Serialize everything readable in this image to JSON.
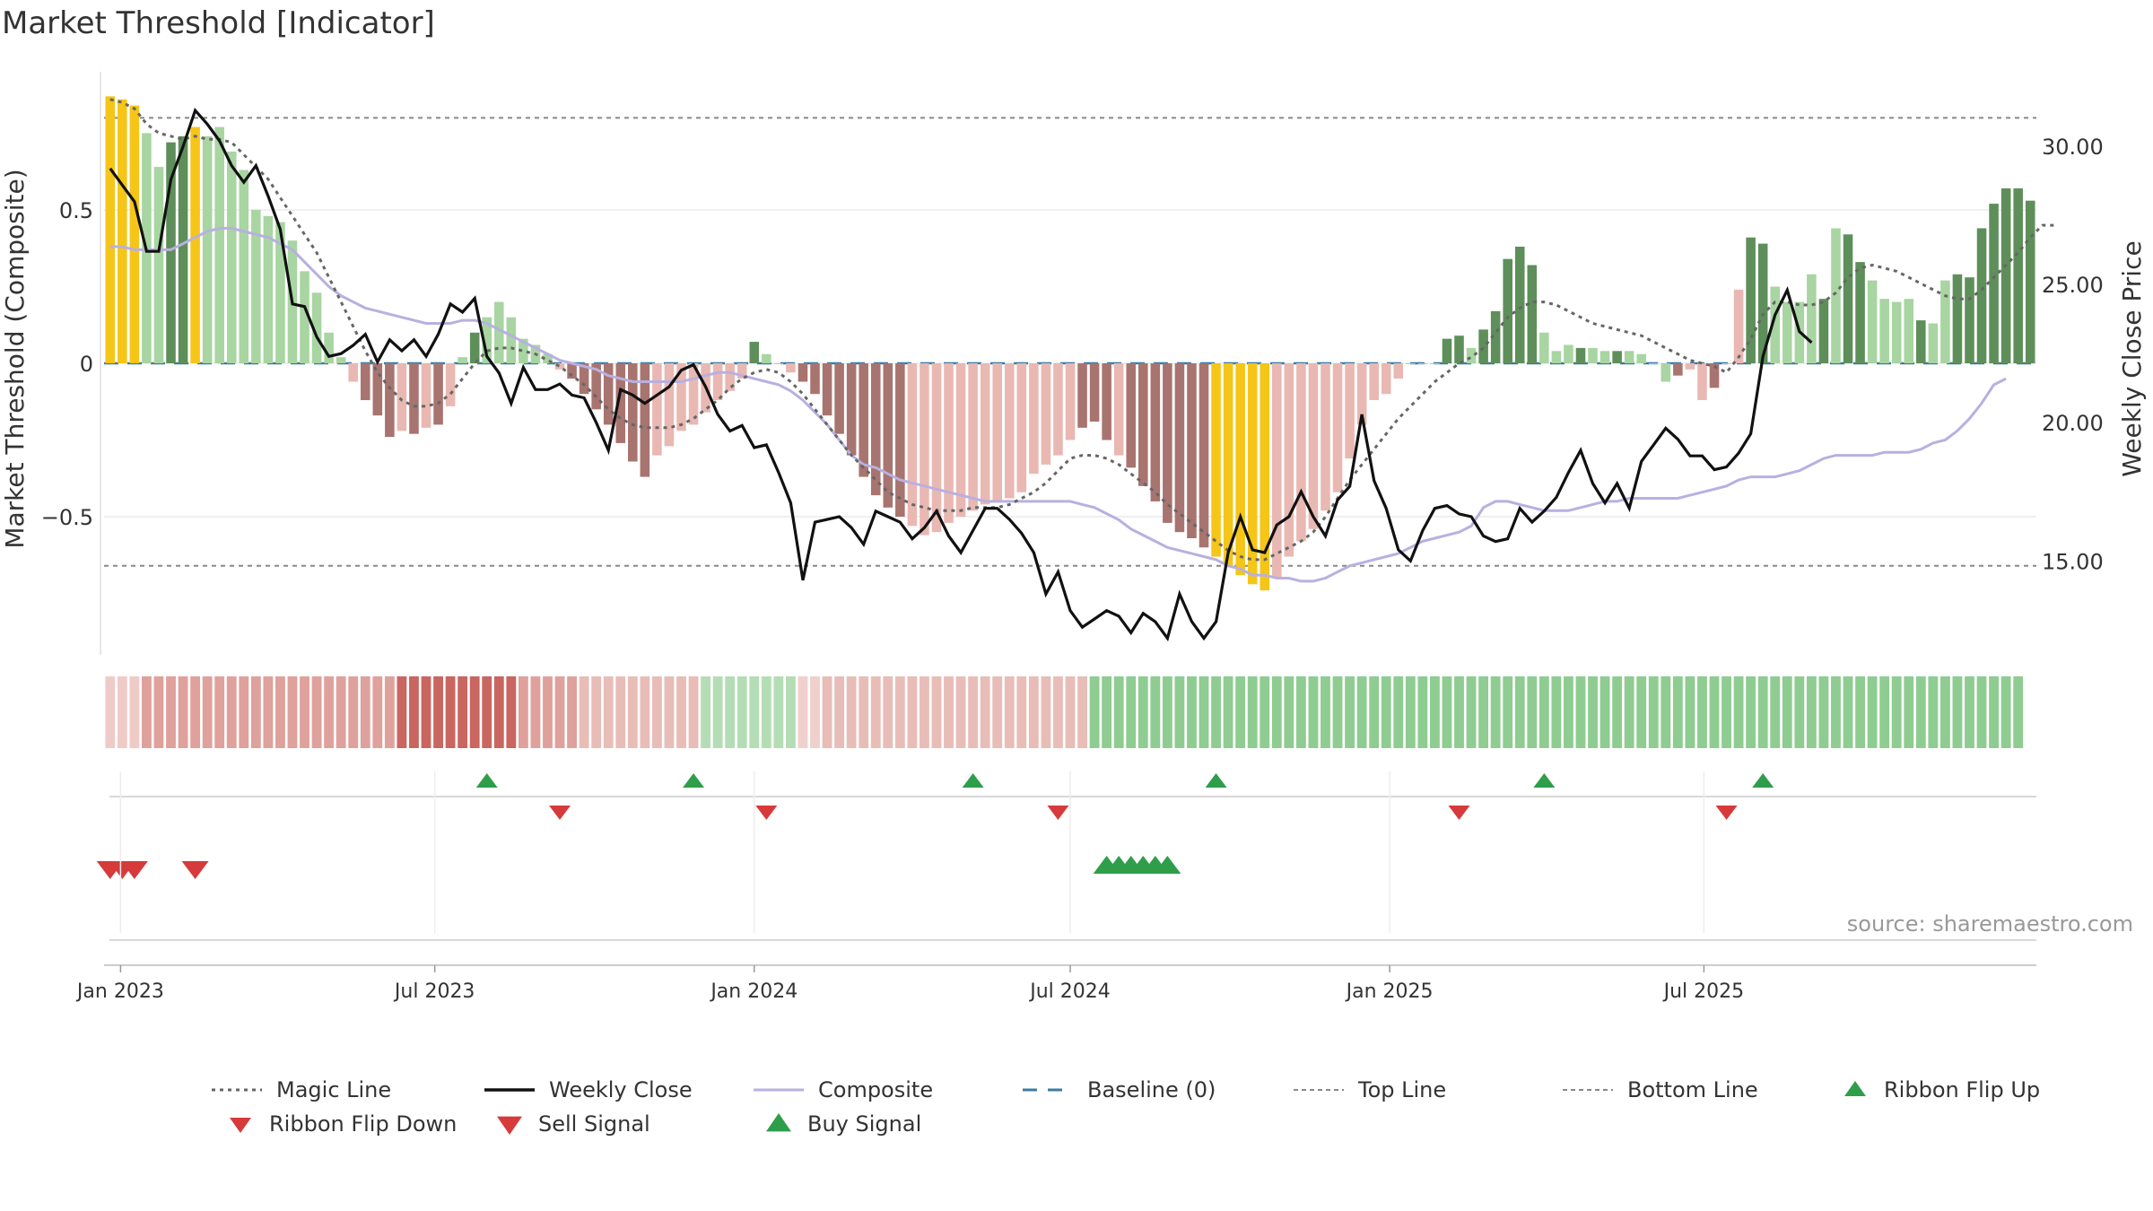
{
  "title": "Market Threshold [Indicator]",
  "source": "source: sharemaestro.com",
  "colors": {
    "yellow": "#F5C518",
    "green_light": "#A8D5A2",
    "green_dark": "#5E8F5A",
    "red_light": "#E9B8B2",
    "red_dark": "#A87470",
    "magic": "#666666",
    "close": "#111111",
    "composite": "#B8B0E0",
    "baseline": "#3A7CA5",
    "refline": "#888888",
    "flip_up": "#2E9E4A",
    "flip_down": "#D63A3A",
    "sell": "#D63A3A",
    "buy": "#2E9E4A"
  },
  "chart_data": {
    "type": "bar",
    "x_start": "2022-12-26",
    "x_interval_days": 7,
    "x_ticks": [
      "Jan 2023",
      "Jul 2023",
      "Jan 2024",
      "Jul 2024",
      "Jan 2025",
      "Jul 2025"
    ],
    "y_left": {
      "label": "Market Threshold (Composite)",
      "ticks": [
        "0.5",
        "0",
        "−0.5"
      ],
      "tick_values": [
        0.5,
        0,
        -0.5
      ],
      "range": [
        -0.95,
        0.95
      ]
    },
    "y_right": {
      "label": "Weekly Close Price",
      "ticks": [
        "30.00",
        "25.00",
        "20.00",
        "15.00"
      ],
      "tick_values": [
        30,
        25,
        20,
        15
      ],
      "range": [
        11.6,
        32.7
      ]
    },
    "top_line": 0.8,
    "bottom_line": -0.66,
    "bars": {
      "values": [
        0.87,
        0.86,
        0.84,
        0.75,
        0.64,
        0.72,
        0.74,
        0.77,
        0.74,
        0.77,
        0.69,
        0.63,
        0.5,
        0.48,
        0.46,
        0.4,
        0.3,
        0.23,
        0.1,
        0.02,
        -0.06,
        -0.12,
        -0.17,
        -0.24,
        -0.22,
        -0.23,
        -0.21,
        -0.2,
        -0.14,
        0.02,
        0.1,
        0.15,
        0.2,
        0.15,
        0.08,
        0.06,
        0.03,
        -0.02,
        -0.05,
        -0.1,
        -0.15,
        -0.2,
        -0.26,
        -0.32,
        -0.37,
        -0.3,
        -0.27,
        -0.22,
        -0.2,
        -0.16,
        -0.12,
        -0.09,
        -0.05,
        0.07,
        0.03,
        0.0,
        -0.03,
        -0.06,
        -0.1,
        -0.17,
        -0.23,
        -0.3,
        -0.37,
        -0.43,
        -0.47,
        -0.5,
        -0.53,
        -0.56,
        -0.55,
        -0.52,
        -0.5,
        -0.48,
        -0.46,
        -0.45,
        -0.44,
        -0.42,
        -0.36,
        -0.33,
        -0.3,
        -0.25,
        -0.21,
        -0.19,
        -0.25,
        -0.3,
        -0.34,
        -0.4,
        -0.45,
        -0.52,
        -0.55,
        -0.57,
        -0.6,
        -0.63,
        -0.66,
        -0.69,
        -0.72,
        -0.74,
        -0.7,
        -0.63,
        -0.58,
        -0.54,
        -0.48,
        -0.42,
        -0.31,
        -0.2,
        -0.12,
        -0.1,
        -0.05,
        0.0,
        0.0,
        0.0,
        0.08,
        0.09,
        0.05,
        0.11,
        0.17,
        0.34,
        0.38,
        0.32,
        0.1,
        0.04,
        0.06,
        0.05,
        0.05,
        0.04,
        0.04,
        0.04,
        0.03,
        0.0,
        -0.06,
        -0.04,
        -0.02,
        -0.12,
        -0.08,
        0.0,
        0.24,
        0.41,
        0.39,
        0.25,
        0.2,
        0.2,
        0.29,
        0.21,
        0.44,
        0.42,
        0.33,
        0.27,
        0.21,
        0.2,
        0.21,
        0.14,
        0.13,
        0.27,
        0.29,
        0.28,
        0.44,
        0.52,
        0.57,
        0.57,
        0.53
      ],
      "colors": [
        "Y",
        "Y",
        "Y",
        "GL",
        "GL",
        "GD",
        "GD",
        "Y",
        "GL",
        "GL",
        "GL",
        "GL",
        "GL",
        "GL",
        "GL",
        "GL",
        "GL",
        "GL",
        "GL",
        "GL",
        "RL",
        "RD",
        "RD",
        "RD",
        "RL",
        "RD",
        "RL",
        "RD",
        "RL",
        "GL",
        "GD",
        "GL",
        "GL",
        "GL",
        "GL",
        "GL",
        "GL",
        "RL",
        "RD",
        "RD",
        "RD",
        "RD",
        "RD",
        "RD",
        "RD",
        "RL",
        "RL",
        "RL",
        "RL",
        "RL",
        "RL",
        "RL",
        "RL",
        "GD",
        "GL",
        "GL",
        "RL",
        "RD",
        "RD",
        "RD",
        "RD",
        "RD",
        "RD",
        "RD",
        "RD",
        "RD",
        "RL",
        "RL",
        "RL",
        "RL",
        "RL",
        "RL",
        "RL",
        "RL",
        "RL",
        "RL",
        "RL",
        "RL",
        "RL",
        "RL",
        "RD",
        "RD",
        "RD",
        "RL",
        "RD",
        "RD",
        "RD",
        "RD",
        "RD",
        "RD",
        "RD",
        "Y",
        "Y",
        "Y",
        "Y",
        "Y",
        "RL",
        "RL",
        "RL",
        "RL",
        "RL",
        "RL",
        "RL",
        "RL",
        "RL",
        "RL",
        "RL",
        "GL",
        "GL",
        "GL",
        "GD",
        "GD",
        "GL",
        "GD",
        "GD",
        "GD",
        "GD",
        "GD",
        "GL",
        "GL",
        "GL",
        "GD",
        "GL",
        "GL",
        "GD",
        "GL",
        "GL",
        "GL",
        "GL",
        "RD",
        "RL",
        "RL",
        "RD",
        "RL",
        "RL",
        "GD",
        "GD",
        "GL",
        "GL",
        "GL",
        "GL",
        "GD",
        "GL",
        "GD",
        "GD",
        "GL",
        "GL",
        "GL",
        "GL",
        "GD",
        "GL",
        "GL",
        "GD",
        "GD",
        "GD",
        "GD",
        "GD",
        "GD",
        "GD",
        "GL"
      ]
    },
    "series": [
      {
        "name": "Magic Line",
        "values": [
          0.86,
          0.85,
          0.83,
          0.78,
          0.75,
          0.74,
          0.73,
          0.74,
          0.73,
          0.73,
          0.72,
          0.68,
          0.64,
          0.6,
          0.54,
          0.48,
          0.42,
          0.36,
          0.28,
          0.2,
          0.12,
          0.04,
          -0.03,
          -0.08,
          -0.12,
          -0.14,
          -0.14,
          -0.13,
          -0.1,
          -0.05,
          0.0,
          0.04,
          0.05,
          0.05,
          0.04,
          0.03,
          0.01,
          -0.01,
          -0.04,
          -0.07,
          -0.11,
          -0.15,
          -0.18,
          -0.2,
          -0.21,
          -0.21,
          -0.21,
          -0.2,
          -0.18,
          -0.15,
          -0.12,
          -0.08,
          -0.05,
          -0.03,
          -0.02,
          -0.03,
          -0.06,
          -0.1,
          -0.15,
          -0.2,
          -0.25,
          -0.3,
          -0.34,
          -0.38,
          -0.42,
          -0.44,
          -0.46,
          -0.47,
          -0.48,
          -0.48,
          -0.48,
          -0.47,
          -0.47,
          -0.47,
          -0.46,
          -0.44,
          -0.42,
          -0.39,
          -0.35,
          -0.31,
          -0.3,
          -0.3,
          -0.31,
          -0.33,
          -0.36,
          -0.39,
          -0.42,
          -0.46,
          -0.49,
          -0.52,
          -0.55,
          -0.58,
          -0.61,
          -0.63,
          -0.64,
          -0.64,
          -0.62,
          -0.6,
          -0.58,
          -0.55,
          -0.5,
          -0.44,
          -0.38,
          -0.33,
          -0.28,
          -0.23,
          -0.18,
          -0.14,
          -0.1,
          -0.06,
          -0.03,
          0.0,
          0.02,
          0.05,
          0.1,
          0.15,
          0.18,
          0.2,
          0.2,
          0.19,
          0.17,
          0.15,
          0.13,
          0.12,
          0.11,
          0.1,
          0.09,
          0.07,
          0.05,
          0.03,
          0.01,
          0.0,
          -0.01,
          -0.03,
          0.02,
          0.08,
          0.16,
          0.2,
          0.2,
          0.19,
          0.19,
          0.2,
          0.23,
          0.28,
          0.31,
          0.32,
          0.31,
          0.3,
          0.28,
          0.26,
          0.24,
          0.22,
          0.21,
          0.21,
          0.24,
          0.28,
          0.32,
          0.36,
          0.41,
          0.45,
          0.45
        ]
      },
      {
        "name": "Weekly Close",
        "values": [
          29.2,
          28.6,
          28.0,
          26.2,
          26.2,
          28.8,
          30.0,
          31.3,
          30.8,
          30.2,
          29.3,
          28.7,
          29.3,
          28.2,
          27.0,
          24.3,
          24.2,
          23.1,
          22.4,
          22.5,
          22.8,
          23.2,
          22.2,
          23.0,
          22.6,
          23.0,
          22.4,
          23.2,
          24.3,
          24.0,
          24.5,
          22.4,
          21.8,
          20.7,
          22.0,
          21.2,
          21.2,
          21.4,
          21.0,
          20.9,
          20.0,
          19.0,
          21.2,
          21.0,
          20.7,
          21.0,
          21.3,
          21.9,
          22.1,
          21.3,
          20.3,
          19.7,
          19.9,
          19.1,
          19.2,
          18.2,
          17.1,
          14.3,
          16.4,
          16.5,
          16.6,
          16.2,
          15.6,
          16.8,
          16.6,
          16.4,
          15.8,
          16.2,
          16.8,
          15.9,
          15.3,
          16.1,
          16.9,
          16.9,
          16.5,
          16.0,
          15.3,
          13.8,
          14.6,
          13.2,
          12.6,
          12.9,
          13.2,
          13.0,
          12.4,
          13.1,
          12.8,
          12.2,
          13.8,
          12.8,
          12.2,
          12.8,
          15.3,
          16.6,
          15.4,
          15.3,
          16.3,
          16.6,
          17.5,
          16.6,
          15.9,
          17.2,
          17.7,
          20.3,
          17.9,
          16.9,
          15.4,
          15.0,
          16.1,
          16.9,
          17.0,
          16.7,
          16.6,
          15.9,
          15.7,
          15.8,
          16.9,
          16.4,
          16.8,
          17.3,
          18.2,
          19.0,
          17.8,
          17.1,
          17.8,
          16.9,
          18.6,
          19.2,
          19.8,
          19.4,
          18.8,
          18.8,
          18.3,
          18.4,
          18.9,
          19.6,
          22.4,
          23.9,
          24.8,
          23.3,
          22.9
        ],
        "x_offset": 0
      },
      {
        "name": "Composite",
        "values": [
          0.38,
          0.38,
          0.37,
          0.37,
          0.37,
          0.37,
          0.39,
          0.41,
          0.43,
          0.44,
          0.44,
          0.43,
          0.42,
          0.41,
          0.39,
          0.37,
          0.33,
          0.29,
          0.25,
          0.22,
          0.2,
          0.18,
          0.17,
          0.16,
          0.15,
          0.14,
          0.13,
          0.13,
          0.13,
          0.14,
          0.14,
          0.13,
          0.11,
          0.09,
          0.07,
          0.05,
          0.03,
          0.01,
          0.0,
          -0.01,
          -0.02,
          -0.04,
          -0.05,
          -0.06,
          -0.06,
          -0.06,
          -0.06,
          -0.06,
          -0.05,
          -0.04,
          -0.03,
          -0.03,
          -0.04,
          -0.05,
          -0.06,
          -0.07,
          -0.09,
          -0.12,
          -0.16,
          -0.2,
          -0.25,
          -0.3,
          -0.33,
          -0.34,
          -0.36,
          -0.38,
          -0.39,
          -0.4,
          -0.41,
          -0.42,
          -0.43,
          -0.44,
          -0.45,
          -0.45,
          -0.45,
          -0.45,
          -0.45,
          -0.45,
          -0.45,
          -0.45,
          -0.46,
          -0.47,
          -0.49,
          -0.51,
          -0.54,
          -0.56,
          -0.58,
          -0.6,
          -0.61,
          -0.62,
          -0.63,
          -0.64,
          -0.66,
          -0.67,
          -0.69,
          -0.69,
          -0.7,
          -0.7,
          -0.71,
          -0.71,
          -0.7,
          -0.68,
          -0.66,
          -0.65,
          -0.64,
          -0.63,
          -0.62,
          -0.6,
          -0.58,
          -0.57,
          -0.56,
          -0.55,
          -0.53,
          -0.47,
          -0.45,
          -0.45,
          -0.46,
          -0.47,
          -0.48,
          -0.48,
          -0.48,
          -0.47,
          -0.46,
          -0.45,
          -0.45,
          -0.44,
          -0.44,
          -0.44,
          -0.44,
          -0.44,
          -0.43,
          -0.42,
          -0.41,
          -0.4,
          -0.38,
          -0.37,
          -0.37,
          -0.37,
          -0.36,
          -0.35,
          -0.33,
          -0.31,
          -0.3,
          -0.3,
          -0.3,
          -0.3,
          -0.29,
          -0.29,
          -0.29,
          -0.28,
          -0.26,
          -0.25,
          -0.22,
          -0.18,
          -0.13,
          -0.07,
          -0.05
        ]
      }
    ],
    "ribbon_colors": [
      "R1",
      "R1",
      "R1",
      "R2",
      "R2",
      "R2",
      "R3",
      "R3",
      "R3",
      "R3",
      "R3",
      "R3",
      "R3",
      "R3",
      "R3",
      "R3",
      "R3",
      "R3",
      "R3",
      "R3",
      "R3",
      "R3",
      "R3",
      "R4",
      "R4",
      "R4",
      "R4",
      "R4",
      "R4",
      "R4",
      "R4",
      "R4",
      "R4",
      "R4",
      "R4",
      "R3",
      "R3",
      "R3",
      "R3",
      "R2",
      "R2",
      "R2",
      "R2",
      "R2",
      "R2",
      "R2",
      "R2",
      "R2",
      "R2",
      "G1",
      "G1",
      "G1",
      "G1",
      "G1",
      "G1",
      "G1",
      "G1",
      "R1",
      "R1",
      "R2",
      "R2",
      "R2",
      "R2",
      "R2",
      "R2",
      "R2",
      "R2",
      "R2",
      "R2",
      "R2",
      "R2",
      "R2",
      "R2",
      "R2",
      "R2",
      "R2",
      "R2",
      "R2",
      "R2",
      "R2",
      "R2",
      "G1",
      "G1",
      "G1",
      "G1",
      "G1",
      "G1",
      "G1",
      "G1",
      "G1",
      "G1",
      "G1",
      "G1",
      "G1",
      "G1",
      "G1",
      "G1",
      "G1",
      "G1",
      "G1",
      "G1",
      "G1",
      "G1",
      "G1",
      "G1",
      "G1",
      "G1",
      "G1",
      "G1",
      "G1",
      "G1",
      "G1",
      "G1",
      "G1",
      "G1",
      "G1",
      "G1",
      "G1",
      "G1",
      "G1",
      "G1",
      "G1",
      "G1",
      "G1",
      "G1",
      "G1",
      "G1",
      "G1",
      "G1",
      "G1",
      "G1",
      "G1",
      "G1",
      "G1",
      "G1",
      "G1",
      "G1",
      "G1",
      "G1",
      "G1",
      "G1",
      "G1",
      "G1",
      "G1",
      "G1",
      "G1",
      "G1",
      "G1",
      "G1",
      "G1",
      "G1",
      "G1",
      "G1",
      "G1",
      "G1",
      "G1",
      "G1",
      "G1"
    ],
    "ribbon_pattern": [
      "L",
      "L",
      "L",
      "M",
      "M",
      "M",
      "M",
      "M",
      "M",
      "M",
      "M",
      "M",
      "M",
      "M",
      "M",
      "M",
      "M",
      "M",
      "M",
      "M",
      "M",
      "M",
      "M",
      "M",
      "D",
      "D",
      "D",
      "D",
      "D",
      "D",
      "D",
      "D",
      "D",
      "D",
      "M",
      "M",
      "M",
      "M",
      "M",
      "P",
      "P",
      "P",
      "P",
      "P",
      "P",
      "P",
      "P",
      "P",
      "P",
      "G",
      "G",
      "G",
      "G",
      "G",
      "G",
      "G",
      "G",
      "W",
      "W",
      "P",
      "P",
      "P",
      "P",
      "P",
      "P",
      "P",
      "P",
      "P",
      "P",
      "P",
      "P",
      "P",
      "P",
      "P",
      "P",
      "P",
      "P",
      "P",
      "P",
      "P",
      "P",
      "Q",
      "Q",
      "Q",
      "Q",
      "Q",
      "Q",
      "Q",
      "Q",
      "Q",
      "Q",
      "Q",
      "Q",
      "Q",
      "Q",
      "Q",
      "Q",
      "Q",
      "Q",
      "Q",
      "Q",
      "Q",
      "Q",
      "Q",
      "Q",
      "Q",
      "Q",
      "Q",
      "Q",
      "Q",
      "Q",
      "Q",
      "Q",
      "Q",
      "Q",
      "Q",
      "Q",
      "Q",
      "Q",
      "Q",
      "Q",
      "Q",
      "Q",
      "Q",
      "Q",
      "Q",
      "Q",
      "Q",
      "Q",
      "Q",
      "Q",
      "Q",
      "Q",
      "Q",
      "Q",
      "Q",
      "Q",
      "Q",
      "Q",
      "Q",
      "Q",
      "Q",
      "Q",
      "Q",
      "Q",
      "Q",
      "Q",
      "Q",
      "Q",
      "Q",
      "Q",
      "Q",
      "Q",
      "Q",
      "Q",
      "Q",
      "Q",
      "Q"
    ],
    "ribbon_flip_up": [
      31,
      48,
      71,
      91,
      118,
      136
    ],
    "ribbon_flip_down": [
      37,
      54,
      78,
      111,
      133
    ],
    "sell_signals": [
      0,
      1,
      2,
      7
    ],
    "buy_signals": [
      82,
      83,
      84,
      85,
      86,
      87
    ]
  },
  "legend": [
    {
      "label": "Magic Line",
      "kind": "dotted",
      "color_key": "magic"
    },
    {
      "label": "Weekly Close",
      "kind": "solid",
      "color_key": "close"
    },
    {
      "label": "Composite",
      "kind": "solid-thin",
      "color_key": "composite"
    },
    {
      "label": "Baseline (0)",
      "kind": "dashed",
      "color_key": "baseline"
    },
    {
      "label": "Top Line",
      "kind": "dotted-light",
      "color_key": "refline"
    },
    {
      "label": "Bottom Line",
      "kind": "dotted-light",
      "color_key": "refline"
    },
    {
      "label": "Ribbon Flip Up",
      "kind": "tri-up",
      "color_key": "flip_up"
    },
    {
      "label": "Ribbon Flip Down",
      "kind": "tri-down",
      "color_key": "flip_down"
    },
    {
      "label": "Sell Signal",
      "kind": "tri-down-big",
      "color_key": "sell"
    },
    {
      "label": "Buy Signal",
      "kind": "tri-up-big",
      "color_key": "buy"
    }
  ]
}
